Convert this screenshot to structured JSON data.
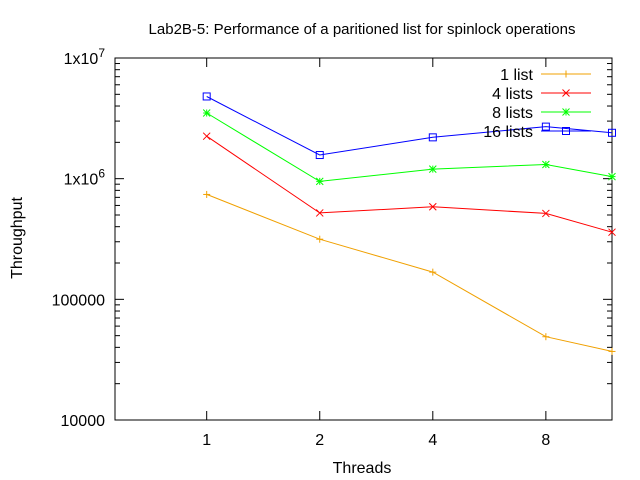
{
  "chart_data": {
    "type": "line",
    "title": "Lab2B-5: Performance of a paritioned list for spinlock operations",
    "xlabel": "Threads",
    "ylabel": "Throughput",
    "x_scale": "log2",
    "y_scale": "log10",
    "x": [
      1,
      2,
      4,
      8,
      12
    ],
    "xlim": [
      0.57,
      12
    ],
    "ylim": [
      10000,
      10000000
    ],
    "x_ticks": [
      {
        "value": 1,
        "label": "1"
      },
      {
        "value": 2,
        "label": "2"
      },
      {
        "value": 4,
        "label": "4"
      },
      {
        "value": 8,
        "label": "8"
      }
    ],
    "y_ticks": [
      {
        "value": 10000,
        "label": "10000"
      },
      {
        "value": 100000,
        "label": "100000"
      },
      {
        "value": 1000000,
        "label": "1x10",
        "exp": "6"
      },
      {
        "value": 10000000,
        "label": "1x10",
        "exp": "7"
      }
    ],
    "legend_position": "top-right",
    "series": [
      {
        "name": "1 list",
        "color": "#f0a000",
        "marker": "plus",
        "values": [
          740000,
          315000,
          168000,
          49000,
          37000
        ]
      },
      {
        "name": "4 lists",
        "color": "#ff0000",
        "marker": "cross",
        "values": [
          2250000,
          520000,
          585000,
          515000,
          360000
        ]
      },
      {
        "name": "8 lists",
        "color": "#00ff00",
        "marker": "star",
        "values": [
          3500000,
          950000,
          1200000,
          1310000,
          1040000
        ]
      },
      {
        "name": "16 lists",
        "color": "#0000ff",
        "marker": "square",
        "values": [
          4800000,
          1570000,
          2200000,
          2700000,
          2400000
        ]
      }
    ]
  }
}
